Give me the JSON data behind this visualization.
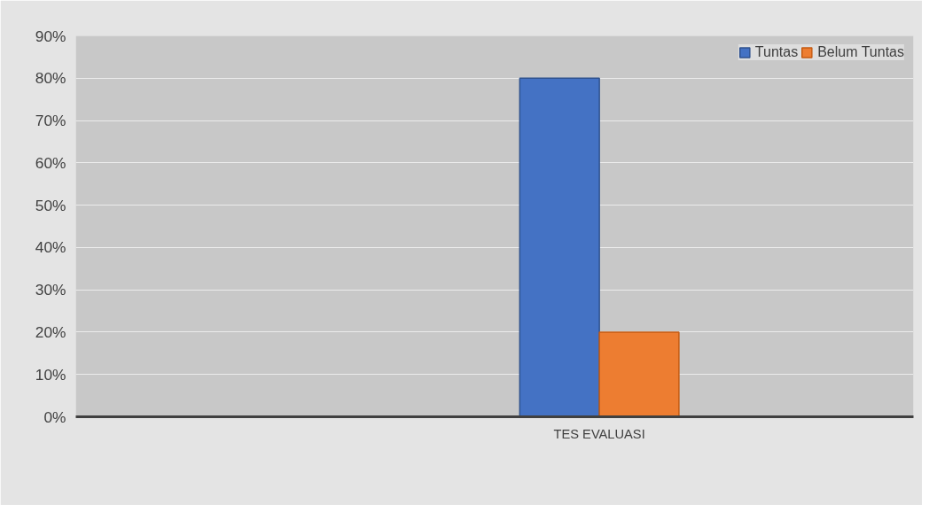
{
  "chart_data": {
    "type": "bar",
    "categories": [
      null,
      null,
      "TES EVALUASI",
      null
    ],
    "series": [
      {
        "name": "Tuntas",
        "color": "#4472c4",
        "values": [
          null,
          null,
          80,
          null
        ]
      },
      {
        "name": "Belum Tuntas",
        "color": "#ed7d31",
        "values": [
          null,
          null,
          20,
          null
        ]
      }
    ],
    "ylim": [
      0,
      90
    ],
    "yticks": [
      {
        "value": 0,
        "label": "0%"
      },
      {
        "value": 10,
        "label": "10%"
      },
      {
        "value": 20,
        "label": "20%"
      },
      {
        "value": 30,
        "label": "30%"
      },
      {
        "value": 40,
        "label": "40%"
      },
      {
        "value": 50,
        "label": "50%"
      },
      {
        "value": 60,
        "label": "60%"
      },
      {
        "value": 70,
        "label": "70%"
      },
      {
        "value": 80,
        "label": "80%"
      },
      {
        "value": 90,
        "label": "90%"
      }
    ],
    "grid": "y",
    "legend": "top right"
  }
}
